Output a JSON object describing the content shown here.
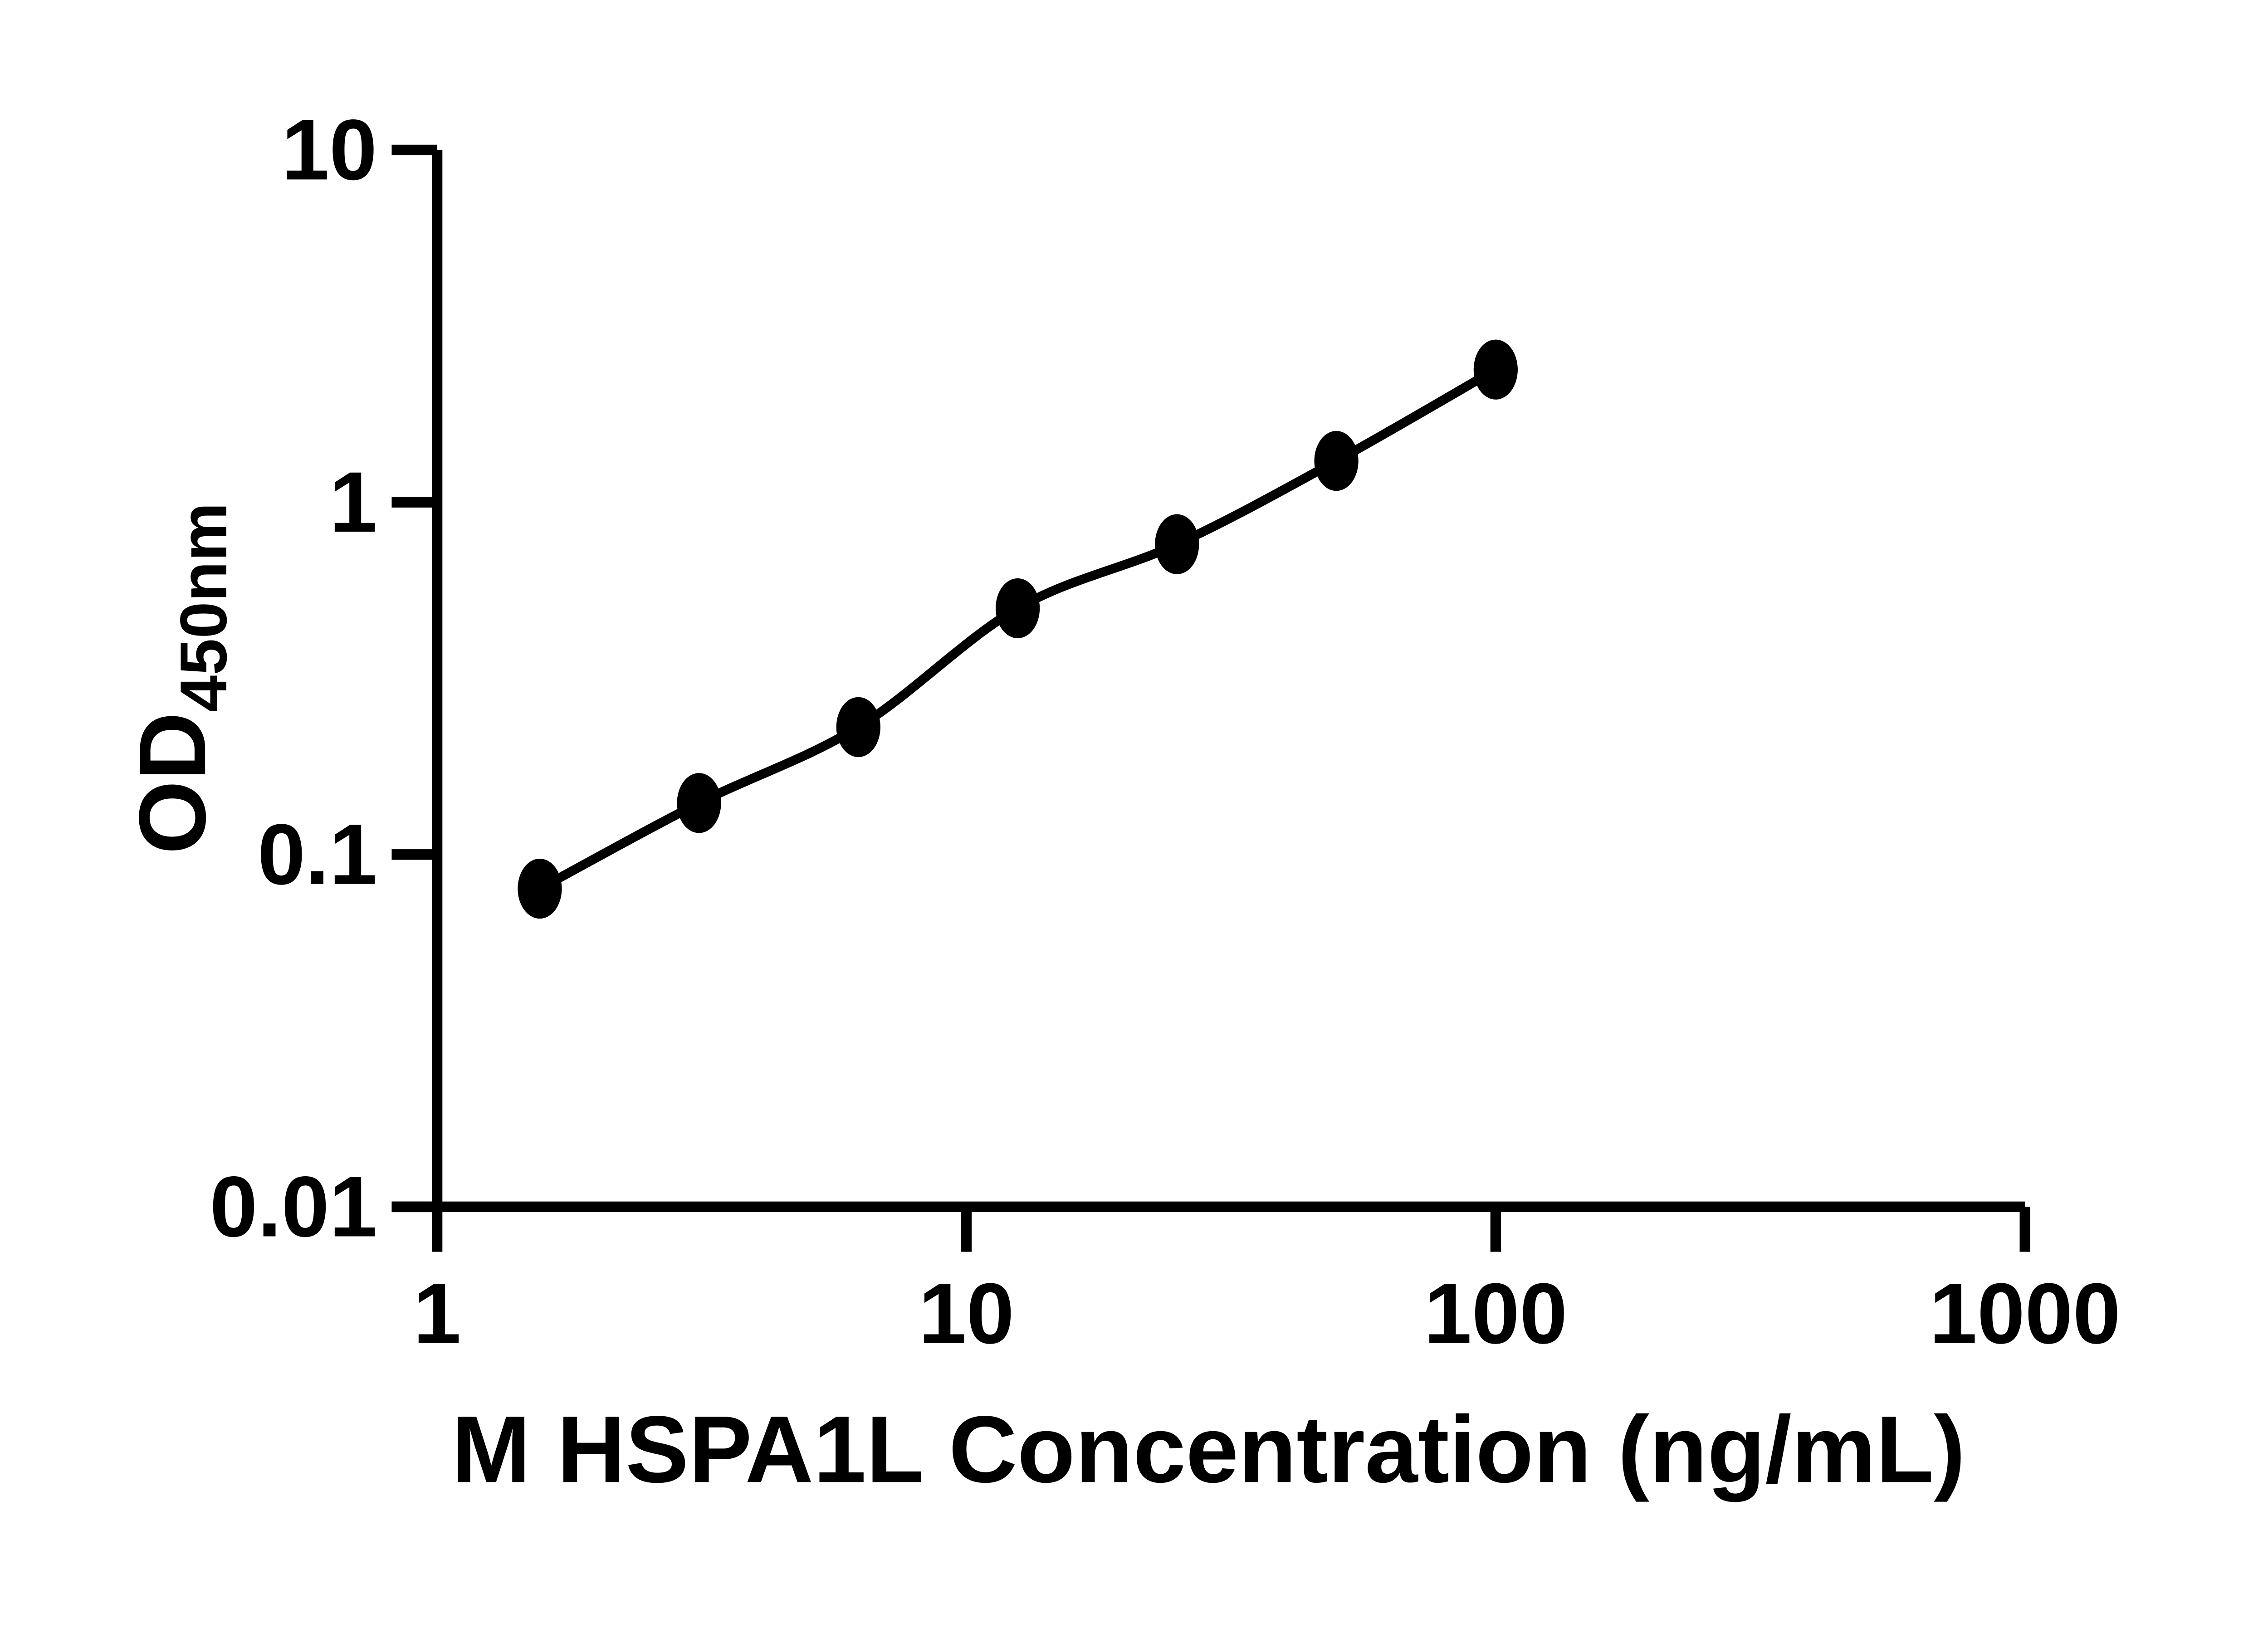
{
  "figure": {
    "x_axis_title": "M HSPA1L Concentration (ng/mL)",
    "y_axis_title_main": "OD",
    "y_axis_title_sub": "450nm"
  },
  "chart_data": {
    "type": "scatter",
    "title": "",
    "xlabel": "M HSPA1L Concentration (ng/mL)",
    "ylabel": "OD450nm",
    "x_scale": "log",
    "y_scale": "log",
    "xlim": [
      1,
      1000
    ],
    "ylim": [
      0.01,
      10
    ],
    "x_ticks": [
      1,
      10,
      100,
      1000
    ],
    "x_tick_labels": [
      "1",
      "10",
      "100",
      "1000"
    ],
    "y_ticks": [
      10,
      1,
      0.1,
      0.01
    ],
    "y_tick_labels": [
      "10",
      "1",
      "0.1",
      "0.01"
    ],
    "grid": false,
    "legend": false,
    "marker": "filled-ellipse",
    "line": "smooth-fit-curve",
    "colors": {
      "axis": "#000000",
      "marker": "#000000",
      "curve": "#000000",
      "background": "#ffffff"
    },
    "points": [
      {
        "x": 1.563,
        "od": 0.08
      },
      {
        "x": 3.125,
        "od": 0.14
      },
      {
        "x": 6.25,
        "od": 0.23
      },
      {
        "x": 12.5,
        "od": 0.5
      },
      {
        "x": 25,
        "od": 0.76
      },
      {
        "x": 50,
        "od": 1.31
      },
      {
        "x": 100,
        "od": 2.38
      }
    ]
  }
}
